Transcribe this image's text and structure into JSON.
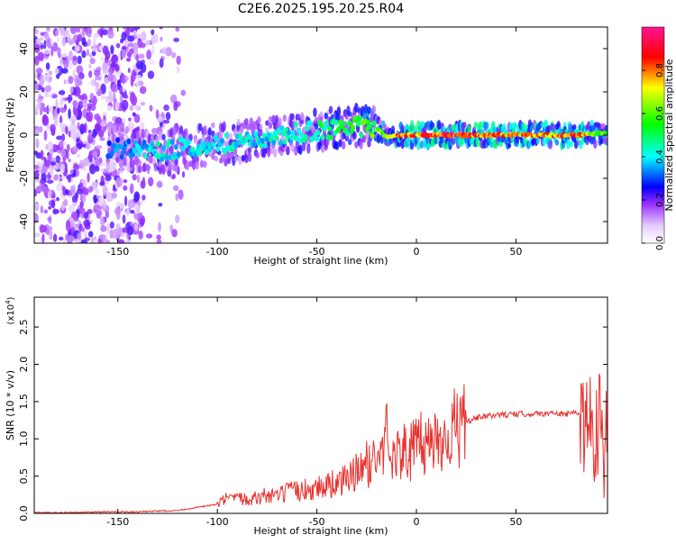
{
  "title": "C2E6.2025.195.20.25.R04",
  "colors": {
    "line": "#e8332f",
    "axis": "#000000",
    "background": "#ffffff"
  },
  "chart_data": [
    {
      "type": "heatmap",
      "xlabel": "Height of straight line (km)",
      "ylabel": "Frequency (Hz)",
      "xlim": [
        -192,
        96
      ],
      "ylim": [
        -50,
        50
      ],
      "xticks": [
        -150,
        -100,
        -50,
        0,
        50
      ],
      "xtick_labels": [
        "-150",
        "-100",
        "-50",
        "0",
        "50"
      ],
      "yticks": [
        -40,
        -20,
        0,
        20,
        40
      ],
      "ytick_labels": [
        "-40",
        "-20",
        "0",
        "20",
        "40"
      ],
      "colorbar": {
        "label": "Normalized spectral amplitude",
        "range": [
          0.0,
          1.0
        ],
        "ticks": [
          0.0,
          0.2,
          0.4,
          0.6,
          0.8
        ],
        "tick_labels": [
          "0.0",
          "0.2",
          "0.4",
          "0.6",
          "0.8"
        ]
      },
      "ridge": {
        "x": [
          -150,
          -140,
          -130,
          -120,
          -110,
          -100,
          -90,
          -80,
          -70,
          -60,
          -50,
          -40,
          -30,
          -20,
          -15,
          -10,
          0,
          20,
          50,
          80,
          96
        ],
        "frequency": [
          -6,
          -7,
          -8,
          -6,
          -5,
          -4,
          -3,
          -2,
          -1,
          1,
          2,
          3,
          4,
          3,
          -1,
          0,
          0,
          0,
          0,
          0,
          1
        ],
        "peak_amplitude": [
          0.35,
          0.4,
          0.45,
          0.45,
          0.45,
          0.45,
          0.45,
          0.45,
          0.45,
          0.45,
          0.5,
          0.55,
          0.6,
          0.65,
          0.7,
          0.85,
          0.9,
          0.95,
          0.85,
          0.9,
          0.6
        ]
      }
    },
    {
      "type": "line",
      "xlabel": "Height of straight line (km)",
      "ylabel": "SNR (10 * v/v)",
      "y_multiplier": "(x10",
      "y_multiplier_exp": "4",
      "y_multiplier_close": ")",
      "xlim": [
        -192,
        96
      ],
      "ylim": [
        0,
        2.9
      ],
      "xticks": [
        -150,
        -100,
        -50,
        0,
        50
      ],
      "xtick_labels": [
        "-150",
        "-100",
        "-50",
        "0",
        "50"
      ],
      "yticks": [
        0,
        0.5,
        1.0,
        1.5,
        2.0,
        2.5
      ],
      "ytick_labels": [
        "0.0",
        "0.5",
        "1.0",
        "1.5",
        "2.0",
        "2.5"
      ],
      "series": [
        {
          "x": [
            -192,
            -180,
            -170,
            -160,
            -150,
            -140,
            -130,
            -120,
            -110,
            -100,
            -95,
            -90,
            -85,
            -80,
            -75,
            -70,
            -65,
            -60,
            -55,
            -50,
            -45,
            -40,
            -35,
            -30,
            -25,
            -20,
            -17,
            -15,
            -12,
            -10,
            -5,
            0,
            5,
            10,
            15,
            20,
            25,
            30,
            40,
            50,
            60,
            70,
            75,
            80,
            85,
            88,
            90,
            92,
            94,
            96
          ],
          "y": [
            0.01,
            0.01,
            0.01,
            0.02,
            0.02,
            0.02,
            0.03,
            0.04,
            0.08,
            0.12,
            0.2,
            0.18,
            0.22,
            0.2,
            0.25,
            0.22,
            0.28,
            0.3,
            0.32,
            0.35,
            0.38,
            0.4,
            0.45,
            0.55,
            0.65,
            0.75,
            0.8,
            1.05,
            0.9,
            0.8,
            0.82,
            0.88,
            0.95,
            1.0,
            1.05,
            1.15,
            1.22,
            1.28,
            1.32,
            1.33,
            1.34,
            1.34,
            1.33,
            1.35,
            1.3,
            1.1,
            1.2,
            1.35,
            1.0,
            0.9
          ]
        }
      ]
    }
  ]
}
